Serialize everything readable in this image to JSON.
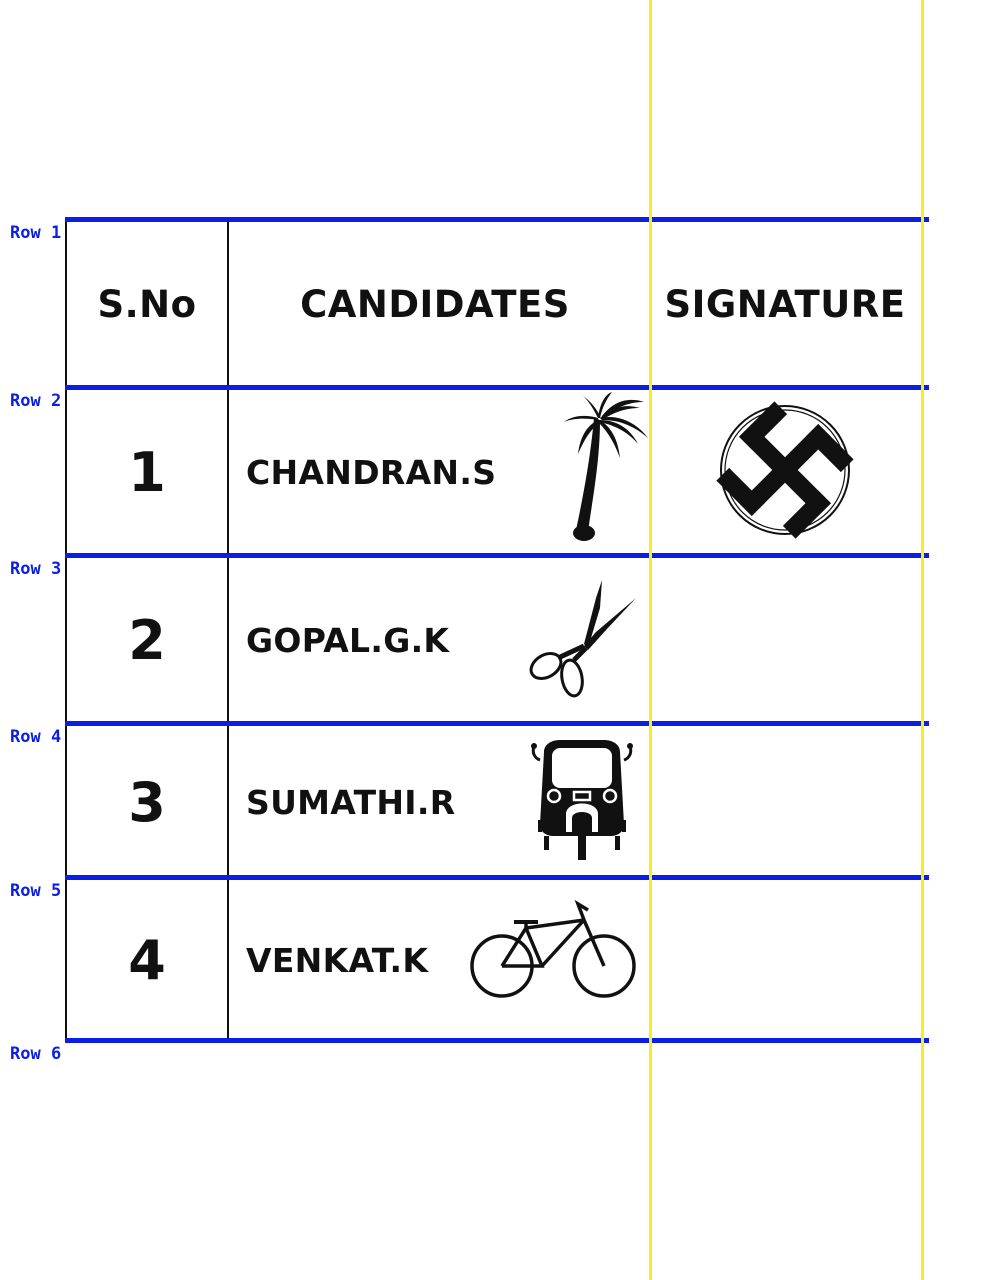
{
  "table": {
    "headers": [
      "S.No",
      "CANDIDATES",
      "SIGNATURE"
    ],
    "rows": [
      {
        "sno": "1",
        "candidate": "CHANDRAN.S",
        "symbol_icon": "coconut-tree-icon",
        "signature_icon": "swastika-mark-icon"
      },
      {
        "sno": "2",
        "candidate": "GOPAL.G.K",
        "symbol_icon": "scissors-icon"
      },
      {
        "sno": "3",
        "candidate": "SUMATHI.R",
        "symbol_icon": "auto-rickshaw-icon"
      },
      {
        "sno": "4",
        "candidate": "VENKAT.K",
        "symbol_icon": "bicycle-icon"
      }
    ]
  },
  "row_markers": [
    "Row 1",
    "Row 2",
    "Row 3",
    "Row 4",
    "Row 5",
    "Row 6"
  ],
  "colors": {
    "row_line": "#0a1ee6",
    "column_line": "#f2f21a",
    "grid_line": "#111111",
    "text": "#111111"
  }
}
